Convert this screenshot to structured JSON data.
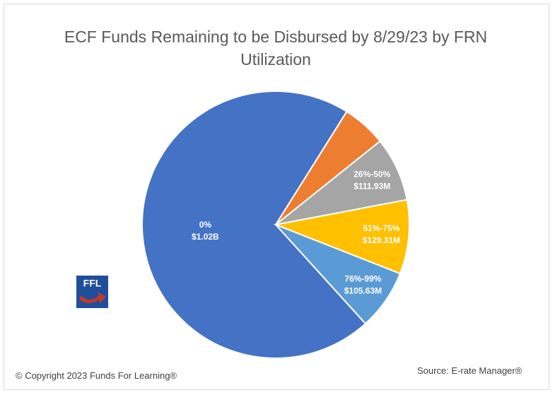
{
  "chart_data": {
    "type": "pie",
    "title": "ECF Funds Remaining to be Disbursed by 8/29/23 by FRN Utilization",
    "categories": [
      "0%",
      null,
      "26%-50%",
      "51%-75%",
      "76%-99%"
    ],
    "values": [
      1020000000,
      77000000,
      111930000,
      129310000,
      105630000
    ],
    "value_labels": [
      "$1.02B",
      null,
      "$111.93M",
      "$129.31M",
      "$105.63M"
    ],
    "colors": [
      "#4472c4",
      "#ed7d31",
      "#a5a5a5",
      "#ffc000",
      "#5b9bd5"
    ]
  },
  "logo": "FFL",
  "copyright": "© Copyright 2023 Funds For Learning®",
  "source": "Source: E-rate Manager®"
}
